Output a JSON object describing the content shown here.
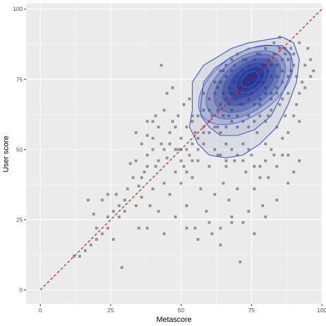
{
  "chart_data": {
    "type": "scatter",
    "xlabel": "Metascore",
    "ylabel": "User score",
    "xlim": [
      -5,
      100
    ],
    "ylim": [
      -5,
      102
    ],
    "x_ticks": [
      0,
      25,
      50,
      75,
      100
    ],
    "y_ticks": [
      0,
      25,
      50,
      75,
      100
    ],
    "grid": true,
    "colors": {
      "panel": "#ebebeb",
      "grid": "#ffffff",
      "points": "#000000",
      "density": "#1e2f8f",
      "reference_line": "#dd0000"
    },
    "reference_line": {
      "from": [
        0,
        0
      ],
      "to": [
        100,
        100
      ],
      "style": "dashed"
    },
    "points": [
      [
        12,
        12
      ],
      [
        14,
        12
      ],
      [
        17,
        32
      ],
      [
        19,
        27
      ],
      [
        20,
        22
      ],
      [
        22,
        32
      ],
      [
        24,
        34
      ],
      [
        24,
        22
      ],
      [
        26,
        18
      ],
      [
        27,
        34
      ],
      [
        28,
        30
      ],
      [
        29,
        8
      ],
      [
        30,
        28
      ],
      [
        31,
        36
      ],
      [
        32,
        45
      ],
      [
        33,
        40
      ],
      [
        34,
        30
      ],
      [
        35,
        22
      ],
      [
        35,
        37
      ],
      [
        36,
        33
      ],
      [
        37,
        42
      ],
      [
        38,
        48
      ],
      [
        38,
        55
      ],
      [
        38,
        22
      ],
      [
        39,
        30
      ],
      [
        40,
        60
      ],
      [
        40,
        36
      ],
      [
        41,
        62
      ],
      [
        41,
        44
      ],
      [
        42,
        28
      ],
      [
        43,
        52
      ],
      [
        43,
        80
      ],
      [
        44,
        64
      ],
      [
        44,
        38
      ],
      [
        45,
        70
      ],
      [
        45,
        47
      ],
      [
        46,
        56
      ],
      [
        46,
        34
      ],
      [
        47,
        60
      ],
      [
        47,
        72
      ],
      [
        48,
        58
      ],
      [
        48,
        42
      ],
      [
        49,
        62
      ],
      [
        49,
        50
      ],
      [
        50,
        54
      ],
      [
        50,
        38
      ],
      [
        51,
        44
      ],
      [
        51,
        66
      ],
      [
        52,
        58
      ],
      [
        52,
        30
      ],
      [
        53,
        48
      ],
      [
        53,
        68
      ],
      [
        54,
        40
      ],
      [
        54,
        62
      ],
      [
        55,
        22
      ],
      [
        55,
        56
      ],
      [
        56,
        46
      ],
      [
        57,
        36
      ],
      [
        58,
        52
      ],
      [
        58,
        70
      ],
      [
        59,
        28
      ],
      [
        60,
        44
      ],
      [
        60,
        64
      ],
      [
        61,
        20
      ],
      [
        62,
        34
      ],
      [
        62,
        74
      ],
      [
        63,
        48
      ],
      [
        63,
        58
      ],
      [
        64,
        16
      ],
      [
        64,
        66
      ],
      [
        65,
        38
      ],
      [
        65,
        78
      ],
      [
        66,
        52
      ],
      [
        66,
        44
      ],
      [
        67,
        32
      ],
      [
        67,
        62
      ],
      [
        68,
        24
      ],
      [
        68,
        70
      ],
      [
        69,
        46
      ],
      [
        69,
        80
      ],
      [
        70,
        36
      ],
      [
        70,
        58
      ],
      [
        71,
        10
      ],
      [
        71,
        66
      ],
      [
        72,
        52
      ],
      [
        72,
        74
      ],
      [
        73,
        42
      ],
      [
        73,
        82
      ],
      [
        74,
        28
      ],
      [
        74,
        62
      ],
      [
        75,
        48
      ],
      [
        75,
        70
      ],
      [
        76,
        36
      ],
      [
        76,
        78
      ],
      [
        77,
        56
      ],
      [
        77,
        84
      ],
      [
        78,
        44
      ],
      [
        78,
        66
      ],
      [
        79,
        30
      ],
      [
        79,
        74
      ],
      [
        80,
        52
      ],
      [
        80,
        86
      ],
      [
        81,
        62
      ],
      [
        81,
        40
      ],
      [
        82,
        70
      ],
      [
        82,
        80
      ],
      [
        83,
        48
      ],
      [
        83,
        88
      ],
      [
        84,
        58
      ],
      [
        84,
        76
      ],
      [
        85,
        66
      ],
      [
        85,
        90
      ],
      [
        86,
        54
      ],
      [
        86,
        82
      ],
      [
        87,
        62
      ],
      [
        87,
        86
      ],
      [
        88,
        70
      ],
      [
        88,
        48
      ],
      [
        89,
        78
      ],
      [
        90,
        84
      ],
      [
        91,
        66
      ],
      [
        92,
        88
      ],
      [
        93,
        74
      ],
      [
        94,
        80
      ],
      [
        95,
        86
      ],
      [
        96,
        82
      ],
      [
        97,
        78
      ],
      [
        92,
        60
      ],
      [
        63,
        72
      ],
      [
        64,
        74
      ],
      [
        65,
        70
      ],
      [
        66,
        76
      ],
      [
        67,
        72
      ],
      [
        68,
        78
      ],
      [
        69,
        74
      ],
      [
        70,
        76
      ],
      [
        71,
        72
      ],
      [
        72,
        78
      ],
      [
        73,
        70
      ],
      [
        74,
        76
      ],
      [
        75,
        74
      ],
      [
        76,
        72
      ],
      [
        77,
        78
      ],
      [
        78,
        74
      ],
      [
        79,
        76
      ],
      [
        80,
        72
      ],
      [
        81,
        78
      ],
      [
        70,
        68
      ],
      [
        72,
        66
      ],
      [
        74,
        68
      ],
      [
        76,
        66
      ],
      [
        78,
        68
      ],
      [
        80,
        70
      ],
      [
        68,
        64
      ],
      [
        66,
        68
      ],
      [
        74,
        80
      ],
      [
        76,
        82
      ],
      [
        78,
        84
      ],
      [
        80,
        80
      ],
      [
        82,
        76
      ],
      [
        84,
        80
      ],
      [
        72,
        82
      ],
      [
        70,
        84
      ],
      [
        68,
        82
      ],
      [
        66,
        80
      ],
      [
        64,
        78
      ],
      [
        62,
        70
      ],
      [
        60,
        68
      ],
      [
        58,
        64
      ],
      [
        56,
        62
      ],
      [
        54,
        60
      ],
      [
        84,
        72
      ],
      [
        86,
        74
      ],
      [
        88,
        76
      ],
      [
        86,
        68
      ],
      [
        82,
        64
      ],
      [
        80,
        60
      ],
      [
        78,
        62
      ],
      [
        76,
        60
      ],
      [
        74,
        58
      ],
      [
        72,
        60
      ],
      [
        70,
        62
      ],
      [
        68,
        60
      ],
      [
        66,
        58
      ],
      [
        64,
        56
      ],
      [
        62,
        58
      ],
      [
        60,
        56
      ],
      [
        58,
        58
      ],
      [
        56,
        54
      ],
      [
        54,
        52
      ],
      [
        52,
        50
      ],
      [
        50,
        50
      ],
      [
        61,
        62
      ],
      [
        63,
        64
      ],
      [
        65,
        62
      ],
      [
        67,
        66
      ],
      [
        69,
        68
      ],
      [
        71,
        70
      ],
      [
        73,
        72
      ],
      [
        75,
        76
      ],
      [
        77,
        74
      ],
      [
        79,
        80
      ],
      [
        81,
        82
      ],
      [
        83,
        84
      ],
      [
        85,
        86
      ],
      [
        87,
        84
      ],
      [
        89,
        86
      ],
      [
        90,
        80
      ],
      [
        91,
        76
      ],
      [
        88,
        82
      ],
      [
        86,
        78
      ],
      [
        84,
        70
      ],
      [
        82,
        68
      ],
      [
        60,
        60
      ],
      [
        58,
        56
      ],
      [
        56,
        50
      ],
      [
        54,
        46
      ],
      [
        52,
        42
      ],
      [
        50,
        46
      ],
      [
        48,
        50
      ],
      [
        46,
        52
      ],
      [
        44,
        50
      ],
      [
        42,
        46
      ],
      [
        40,
        50
      ],
      [
        38,
        44
      ],
      [
        36,
        40
      ],
      [
        34,
        46
      ],
      [
        62,
        50
      ],
      [
        64,
        48
      ],
      [
        66,
        46
      ],
      [
        68,
        50
      ],
      [
        70,
        48
      ],
      [
        72,
        46
      ],
      [
        74,
        50
      ],
      [
        76,
        44
      ],
      [
        78,
        40
      ],
      [
        80,
        46
      ],
      [
        82,
        50
      ],
      [
        84,
        44
      ],
      [
        86,
        48
      ],
      [
        88,
        56
      ],
      [
        90,
        62
      ],
      [
        92,
        70
      ],
      [
        94,
        72
      ],
      [
        96,
        76
      ],
      [
        30,
        32
      ],
      [
        28,
        26
      ],
      [
        26,
        28
      ],
      [
        24,
        26
      ],
      [
        22,
        20
      ],
      [
        20,
        18
      ],
      [
        18,
        16
      ],
      [
        16,
        14
      ],
      [
        44,
        20
      ],
      [
        48,
        26
      ],
      [
        52,
        22
      ],
      [
        56,
        18
      ],
      [
        60,
        24
      ],
      [
        64,
        22
      ],
      [
        68,
        26
      ],
      [
        72,
        24
      ],
      [
        76,
        20
      ],
      [
        80,
        26
      ],
      [
        84,
        32
      ],
      [
        88,
        38
      ],
      [
        90,
        42
      ],
      [
        92,
        46
      ],
      [
        42,
        58
      ],
      [
        40,
        54
      ],
      [
        38,
        60
      ],
      [
        36,
        52
      ],
      [
        34,
        56
      ]
    ],
    "density_contours": [
      {
        "cx": 73,
        "cy": 73,
        "rx": 19,
        "ry": 11,
        "angle": 35
      },
      {
        "cx": 73,
        "cy": 73,
        "rx": 16,
        "ry": 9.5,
        "angle": 36
      },
      {
        "cx": 73.5,
        "cy": 73.5,
        "rx": 13.5,
        "ry": 8,
        "angle": 37
      },
      {
        "cx": 74,
        "cy": 74,
        "rx": 11,
        "ry": 6.5,
        "angle": 38
      },
      {
        "cx": 74,
        "cy": 74.5,
        "rx": 8.5,
        "ry": 5,
        "angle": 38
      },
      {
        "cx": 74.5,
        "cy": 75,
        "rx": 6,
        "ry": 3.6,
        "angle": 39
      },
      {
        "cx": 74.5,
        "cy": 75,
        "rx": 3.5,
        "ry": 2.2,
        "angle": 40
      }
    ],
    "outer_contours": [
      [
        [
          54,
          64
        ],
        [
          54,
          74
        ],
        [
          58,
          80
        ],
        [
          63,
          83
        ],
        [
          68,
          86
        ],
        [
          74,
          88
        ],
        [
          80,
          89
        ],
        [
          86,
          90
        ],
        [
          90,
          88
        ],
        [
          92,
          82
        ],
        [
          91,
          74
        ],
        [
          88,
          66
        ],
        [
          84,
          58
        ],
        [
          78,
          52
        ],
        [
          72,
          48
        ],
        [
          66,
          47
        ],
        [
          60,
          48
        ],
        [
          56,
          52
        ],
        [
          53,
          58
        ],
        [
          54,
          64
        ]
      ],
      [
        [
          57,
          66
        ],
        [
          58,
          74
        ],
        [
          62,
          79
        ],
        [
          68,
          83
        ],
        [
          74,
          86
        ],
        [
          80,
          87
        ],
        [
          86,
          87
        ],
        [
          89,
          84
        ],
        [
          89,
          77
        ],
        [
          86,
          70
        ],
        [
          82,
          62
        ],
        [
          76,
          57
        ],
        [
          70,
          55
        ],
        [
          64,
          55
        ],
        [
          60,
          58
        ],
        [
          57,
          62
        ],
        [
          57,
          66
        ]
      ]
    ]
  }
}
